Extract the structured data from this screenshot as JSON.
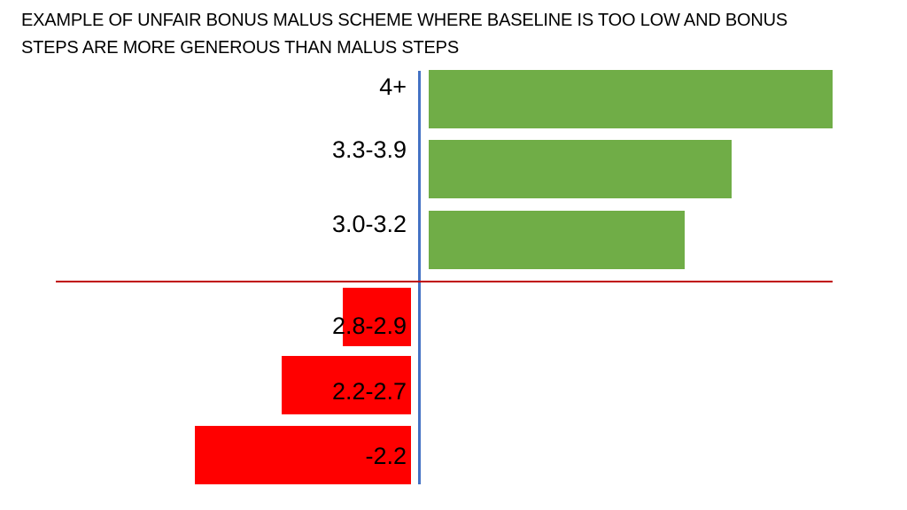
{
  "title": {
    "line1": "EXAMPLE OF UNFAIR BONUS MALUS SCHEME WHERE BASELINE IS TOO LOW AND BONUS",
    "line2": "STEPS ARE MORE GENEROUS THAN MALUS STEPS"
  },
  "colors": {
    "bonus": "#70ad47",
    "malus": "#ff0000",
    "vertical_axis": "#4472c4",
    "baseline": "#c00000"
  },
  "chart_data": {
    "type": "bar",
    "orientation": "horizontal",
    "categories": [
      "4+",
      "3.3-3.9",
      "3.0-3.2",
      "2.8-2.9",
      "2.2-2.7",
      "-2.2"
    ],
    "values": [
      8.6,
      6.45,
      5.45,
      -1.45,
      -2.75,
      -4.6
    ],
    "title": "EXAMPLE OF UNFAIR BONUS MALUS SCHEME WHERE BASELINE IS TOO LOW AND BONUS STEPS ARE MORE GENEROUS THAN MALUS STEPS",
    "xlabel": "",
    "ylabel": "",
    "xlim": [
      -7.65,
      8.85
    ],
    "grid": false,
    "legend": "none"
  }
}
